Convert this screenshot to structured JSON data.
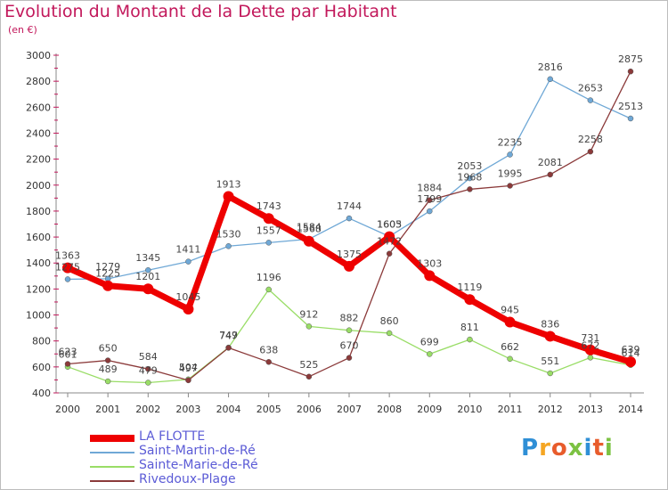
{
  "header": {
    "title": "Evolution du Montant de la Dette par Habitant",
    "subtitle": "(en €)"
  },
  "logo": {
    "text": "Proxiti",
    "letters": [
      "P",
      "r",
      "o",
      "x",
      "i",
      "t",
      "i"
    ],
    "colors": [
      "#2f8fd6",
      "#f5a623",
      "#e85c2c",
      "#7cc242",
      "#2f8fd6",
      "#e85c2c",
      "#7cc242"
    ]
  },
  "chart_data": {
    "type": "line",
    "title": "Evolution du Montant de la Dette par Habitant",
    "ylabel": "(en €)",
    "xlabel": "",
    "x": [
      "2000",
      "2001",
      "2002",
      "2003",
      "2004",
      "2005",
      "2006",
      "2007",
      "2008",
      "2009",
      "2010",
      "2011",
      "2012",
      "2013",
      "2014"
    ],
    "ylim": [
      400,
      3000
    ],
    "yticks": [
      "400",
      "600",
      "800",
      "1000",
      "1200",
      "1400",
      "1600",
      "1800",
      "2000",
      "2200",
      "2400",
      "2600",
      "2800",
      "3000"
    ],
    "grid": false,
    "legend_position": "bottom-left",
    "series": [
      {
        "name": "LA FLOTTE",
        "color": "#ee0000",
        "values": [
          1363,
          1225,
          1201,
          1045,
          1913,
          1743,
          1568,
          1375,
          1603,
          1303,
          1119,
          945,
          836,
          731,
          639
        ],
        "labels": [
          "1363",
          "1225",
          "1201",
          "1045",
          "1913",
          "1743",
          "1568",
          "1375",
          "1603",
          "1303",
          "1119",
          "945",
          "836",
          "731",
          "639"
        ]
      },
      {
        "name": "Saint-Martin-de-Ré",
        "color": "#6fa8d6",
        "values": [
          1275,
          1279,
          1345,
          1411,
          1530,
          1557,
          1584,
          1744,
          1605,
          1799,
          2053,
          2235,
          2816,
          2653,
          2513
        ],
        "labels": [
          "1275",
          "1279",
          "1345",
          "1411",
          "1530",
          "1557",
          "1584",
          "1744",
          "1605",
          "1799",
          "2053",
          "2235",
          "2816",
          "2653",
          "2513"
        ]
      },
      {
        "name": "Sainte-Marie-de-Ré",
        "color": "#99dd66",
        "values": [
          601,
          489,
          479,
          504,
          749,
          1196,
          912,
          882,
          860,
          699,
          811,
          662,
          551,
          672,
          614
        ],
        "labels": [
          "601",
          "489",
          "479",
          "504",
          "749",
          "1196",
          "912",
          "882",
          "860",
          "699",
          "811",
          "662",
          "551",
          "672",
          "614"
        ]
      },
      {
        "name": "Rivedoux-Plage",
        "color": "#8b3a3a",
        "values": [
          623,
          650,
          584,
          497,
          747,
          638,
          525,
          670,
          1472,
          1884,
          1968,
          1995,
          2081,
          2258,
          2875
        ],
        "labels": [
          "623",
          "650",
          "584",
          "497",
          "747",
          "638",
          "525",
          "670",
          "1472",
          "1884",
          "1968",
          "1995",
          "2081",
          "2258",
          "2875"
        ]
      }
    ]
  }
}
